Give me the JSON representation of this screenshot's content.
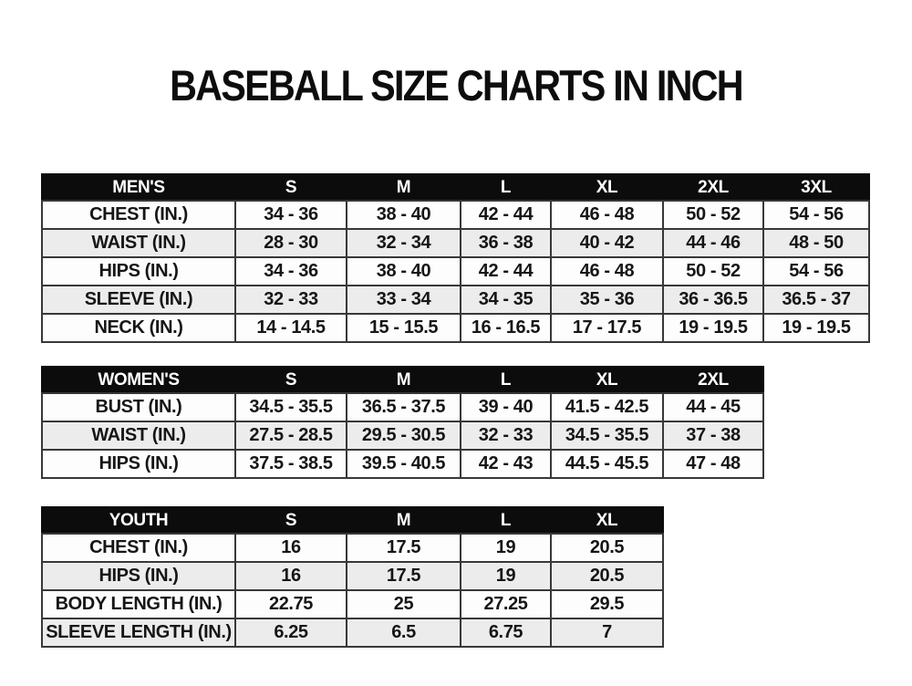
{
  "title": "BASEBALL SIZE CHARTS IN INCH",
  "unit": "inches",
  "colors": {
    "title_text": "#0d0d0d",
    "header_bg": "#0c0c0c",
    "header_text": "#ffffff",
    "row_white": "#fdfdfd",
    "row_gray": "#ececec",
    "grid_line": "#383838",
    "cell_text": "#161616",
    "page_bg": "#ffffff"
  },
  "chart_data": [
    {
      "type": "table",
      "id": "mens",
      "group_label": "MEN'S",
      "columns": [
        "S",
        "M",
        "L",
        "XL",
        "2XL",
        "3XL"
      ],
      "row_labels": [
        "CHEST (IN.)",
        "WAIST (IN.)",
        "HIPS (IN.)",
        "SLEEVE (IN.)",
        "NECK (IN.)"
      ],
      "rows": [
        [
          "34 - 36",
          "38 - 40",
          "42 - 44",
          "46 - 48",
          "50 - 52",
          "54 - 56"
        ],
        [
          "28 - 30",
          "32 - 34",
          "36 - 38",
          "40 - 42",
          "44 - 46",
          "48 - 50"
        ],
        [
          "34 - 36",
          "38 - 40",
          "42 - 44",
          "46 - 48",
          "50 - 52",
          "54 - 56"
        ],
        [
          "32 - 33",
          "33 - 34",
          "34 - 35",
          "35 - 36",
          "36 - 36.5",
          "36.5 - 37"
        ],
        [
          "14 - 14.5",
          "15 - 15.5",
          "16 - 16.5",
          "17 - 17.5",
          "19 - 19.5",
          "19 - 19.5"
        ]
      ]
    },
    {
      "type": "table",
      "id": "womens",
      "group_label": "WOMEN'S",
      "columns": [
        "S",
        "M",
        "L",
        "XL",
        "2XL"
      ],
      "row_labels": [
        "BUST (IN.)",
        "WAIST (IN.)",
        "HIPS (IN.)"
      ],
      "rows": [
        [
          "34.5 - 35.5",
          "36.5 - 37.5",
          "39 - 40",
          "41.5 - 42.5",
          "44 - 45"
        ],
        [
          "27.5 - 28.5",
          "29.5 - 30.5",
          "32 - 33",
          "34.5 - 35.5",
          "37 - 38"
        ],
        [
          "37.5 - 38.5",
          "39.5 - 40.5",
          "42 - 43",
          "44.5 - 45.5",
          "47 - 48"
        ]
      ]
    },
    {
      "type": "table",
      "id": "youth",
      "group_label": "YOUTH",
      "columns": [
        "S",
        "M",
        "L",
        "XL"
      ],
      "row_labels": [
        "CHEST (IN.)",
        "HIPS (IN.)",
        "BODY LENGTH (IN.)",
        "SLEEVE LENGTH (IN.)"
      ],
      "rows": [
        [
          "16",
          "17.5",
          "19",
          "20.5"
        ],
        [
          "16",
          "17.5",
          "19",
          "20.5"
        ],
        [
          "22.75",
          "25",
          "27.25",
          "29.5"
        ],
        [
          "6.25",
          "6.5",
          "6.75",
          "7"
        ]
      ]
    }
  ]
}
